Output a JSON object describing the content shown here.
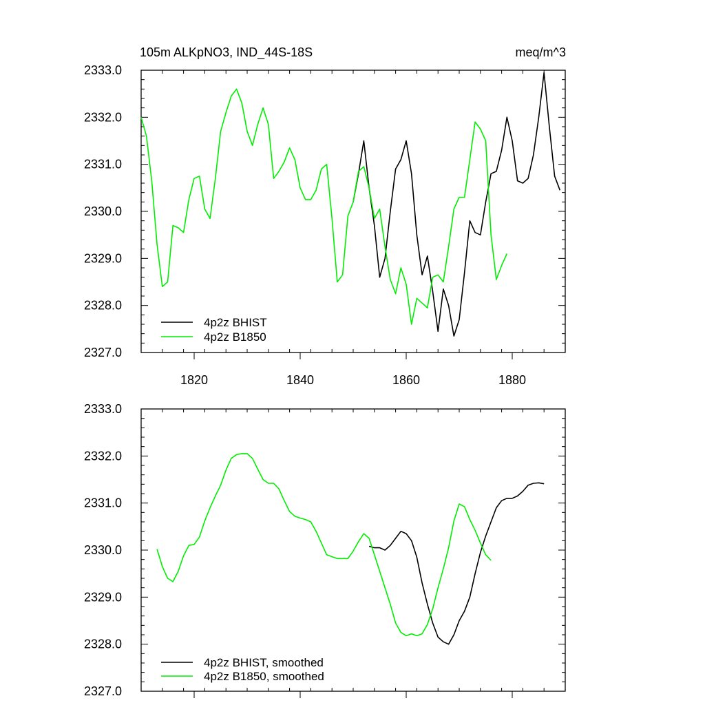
{
  "chart_data": [
    {
      "type": "line",
      "title": "105m ALKpNO3, IND_44S-18S",
      "units": "meq/m^3",
      "xlim": [
        1810,
        1890
      ],
      "ylim": [
        2327.0,
        2333.0
      ],
      "x_ticks": [
        1820,
        1840,
        1860,
        1880
      ],
      "x_tick_labels": [
        "1820",
        "1840",
        "1860",
        "1880"
      ],
      "y_ticks": [
        2327.0,
        2328.0,
        2329.0,
        2330.0,
        2331.0,
        2332.0,
        2333.0
      ],
      "y_tick_labels": [
        "2327.0",
        "2328.0",
        "2329.0",
        "2330.0",
        "2331.0",
        "2332.0",
        "2333.0"
      ],
      "legend_position": "bottom-left",
      "series": [
        {
          "name": "4p2z BHIST",
          "color": "#000000",
          "x": [
            1850,
            1851,
            1852,
            1853,
            1854,
            1855,
            1856,
            1857,
            1858,
            1859,
            1860,
            1861,
            1862,
            1863,
            1864,
            1865,
            1866,
            1867,
            1868,
            1869,
            1870,
            1871,
            1872,
            1873,
            1874,
            1875,
            1876,
            1877,
            1878,
            1879,
            1880,
            1881,
            1882,
            1883,
            1884,
            1885,
            1886,
            1887,
            1888,
            1889
          ],
          "values": [
            2330.2,
            2330.8,
            2331.5,
            2330.5,
            2329.7,
            2328.6,
            2329.0,
            2330.0,
            2330.9,
            2331.1,
            2331.5,
            2330.8,
            2329.5,
            2328.65,
            2329.05,
            2328.3,
            2327.45,
            2328.35,
            2328.0,
            2327.35,
            2327.7,
            2328.7,
            2329.8,
            2329.55,
            2329.5,
            2330.2,
            2330.8,
            2330.85,
            2331.3,
            2332.0,
            2331.5,
            2330.65,
            2330.6,
            2330.7,
            2331.2,
            2332.0,
            2332.95,
            2331.8,
            2330.75,
            2330.45
          ]
        },
        {
          "name": "4p2z B1850",
          "color": "#00ee00",
          "x": [
            1810,
            1811,
            1812,
            1813,
            1814,
            1815,
            1816,
            1817,
            1818,
            1819,
            1820,
            1821,
            1822,
            1823,
            1824,
            1825,
            1826,
            1827,
            1828,
            1829,
            1830,
            1831,
            1832,
            1833,
            1834,
            1835,
            1836,
            1837,
            1838,
            1839,
            1840,
            1841,
            1842,
            1843,
            1844,
            1845,
            1846,
            1847,
            1848,
            1849,
            1850,
            1851,
            1852,
            1853,
            1854,
            1855,
            1856,
            1857,
            1858,
            1859,
            1860,
            1861,
            1862,
            1863,
            1864,
            1865,
            1866,
            1867,
            1868,
            1869,
            1870,
            1871,
            1872,
            1873,
            1874,
            1875,
            1876,
            1877,
            1878,
            1879
          ],
          "values": [
            2332.0,
            2331.6,
            2330.65,
            2329.3,
            2328.4,
            2328.5,
            2329.7,
            2329.65,
            2329.55,
            2330.25,
            2330.7,
            2330.75,
            2330.05,
            2329.85,
            2330.7,
            2331.7,
            2332.1,
            2332.45,
            2332.6,
            2332.3,
            2331.7,
            2331.4,
            2331.85,
            2332.2,
            2331.85,
            2330.7,
            2330.85,
            2331.05,
            2331.35,
            2331.1,
            2330.5,
            2330.25,
            2330.25,
            2330.45,
            2330.9,
            2331.0,
            2329.85,
            2328.5,
            2328.65,
            2329.9,
            2330.2,
            2330.85,
            2330.95,
            2330.5,
            2329.85,
            2330.05,
            2329.25,
            2328.55,
            2328.25,
            2328.8,
            2328.45,
            2327.6,
            2328.15,
            2328.05,
            2327.95,
            2328.6,
            2328.65,
            2328.5,
            2329.25,
            2330.05,
            2330.3,
            2330.3,
            2331.1,
            2331.9,
            2331.75,
            2331.5,
            2329.5,
            2328.55,
            2328.85,
            2329.1
          ]
        }
      ]
    },
    {
      "type": "line",
      "title": "",
      "xlim": [
        1810,
        1890
      ],
      "ylim": [
        2327.0,
        2333.0
      ],
      "x_ticks": [
        1820,
        1840,
        1860,
        1880
      ],
      "y_ticks": [
        2327.0,
        2328.0,
        2329.0,
        2330.0,
        2331.0,
        2332.0,
        2333.0
      ],
      "y_tick_labels": [
        "2327.0",
        "2328.0",
        "2329.0",
        "2330.0",
        "2331.0",
        "2332.0",
        "2333.0"
      ],
      "legend_position": "bottom-left",
      "series": [
        {
          "name": "4p2z BHIST, smoothed",
          "color": "#000000",
          "x": [
            1853,
            1854,
            1855,
            1856,
            1857,
            1858,
            1859,
            1860,
            1861,
            1862,
            1863,
            1864,
            1865,
            1866,
            1867,
            1868,
            1869,
            1870,
            1871,
            1872,
            1873,
            1874,
            1875,
            1876,
            1877,
            1878,
            1879,
            1880,
            1881,
            1882,
            1883,
            1884,
            1885,
            1886
          ],
          "values": [
            2330.08,
            2330.05,
            2330.05,
            2330.0,
            2330.1,
            2330.25,
            2330.4,
            2330.35,
            2330.2,
            2329.85,
            2329.3,
            2328.85,
            2328.45,
            2328.15,
            2328.05,
            2328.0,
            2328.2,
            2328.5,
            2328.7,
            2329.0,
            2329.5,
            2329.95,
            2330.3,
            2330.6,
            2330.9,
            2331.05,
            2331.1,
            2331.1,
            2331.15,
            2331.25,
            2331.38,
            2331.42,
            2331.43,
            2331.41
          ]
        },
        {
          "name": "4p2z B1850, smoothed",
          "color": "#00ee00",
          "x": [
            1813,
            1814,
            1815,
            1816,
            1817,
            1818,
            1819,
            1820,
            1821,
            1822,
            1823,
            1824,
            1825,
            1826,
            1827,
            1828,
            1829,
            1830,
            1831,
            1832,
            1833,
            1834,
            1835,
            1836,
            1837,
            1838,
            1839,
            1840,
            1841,
            1842,
            1843,
            1844,
            1845,
            1846,
            1847,
            1848,
            1849,
            1850,
            1851,
            1852,
            1853,
            1854,
            1855,
            1856,
            1857,
            1858,
            1859,
            1860,
            1861,
            1862,
            1863,
            1864,
            1865,
            1866,
            1867,
            1868,
            1869,
            1870,
            1871,
            1872,
            1873,
            1874,
            1875,
            1876
          ],
          "values": [
            2330.02,
            2329.65,
            2329.4,
            2329.33,
            2329.55,
            2329.88,
            2330.1,
            2330.12,
            2330.28,
            2330.62,
            2330.9,
            2331.15,
            2331.38,
            2331.7,
            2331.95,
            2332.03,
            2332.05,
            2332.05,
            2331.95,
            2331.72,
            2331.5,
            2331.42,
            2331.42,
            2331.3,
            2331.05,
            2330.82,
            2330.72,
            2330.68,
            2330.65,
            2330.6,
            2330.4,
            2330.15,
            2329.9,
            2329.86,
            2329.82,
            2329.82,
            2329.82,
            2329.98,
            2330.18,
            2330.35,
            2330.25,
            2329.9,
            2329.55,
            2329.2,
            2328.85,
            2328.45,
            2328.25,
            2328.18,
            2328.22,
            2328.18,
            2328.22,
            2328.42,
            2328.75,
            2329.2,
            2329.6,
            2330.05,
            2330.62,
            2330.98,
            2330.92,
            2330.65,
            2330.42,
            2330.15,
            2329.9,
            2329.78
          ]
        }
      ]
    }
  ]
}
